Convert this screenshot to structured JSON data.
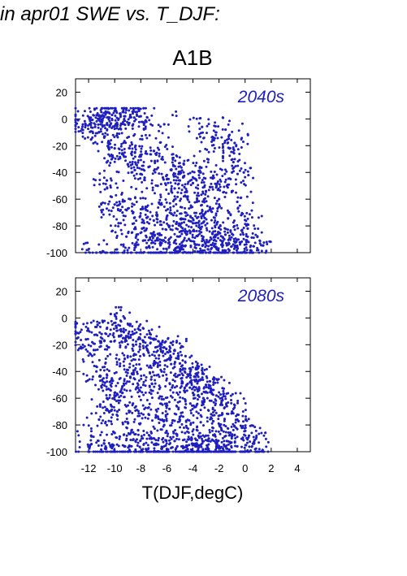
{
  "header": {
    "title": "in apr01 SWE vs. T_DJF:"
  },
  "chart": {
    "scenario": "A1B",
    "xlabel": "T(DJF,degC)"
  },
  "colors": {
    "points": "#1f1fbf",
    "axes": "#000000"
  },
  "chart_data": [
    {
      "type": "scatter",
      "title": "2040s",
      "xlabel": "T(DJF,degC)",
      "ylabel": "",
      "xlim": [
        -13,
        5
      ],
      "ylim": [
        -100,
        30
      ],
      "x_ticks": [
        -12,
        -10,
        -8,
        -6,
        -4,
        -2,
        0,
        2,
        4
      ],
      "y_ticks": [
        20,
        0,
        -20,
        -40,
        -60,
        -80,
        -100
      ],
      "grid": false,
      "series": [
        {
          "points": [
            [
              -12.8,
              -1
            ],
            [
              -11.8,
              -3
            ],
            [
              -11.5,
              -6
            ],
            [
              -11.2,
              -1
            ],
            [
              -11.0,
              2
            ],
            [
              -10.6,
              -4
            ],
            [
              -10.4,
              1
            ],
            [
              -10.2,
              3
            ],
            [
              -10.0,
              6
            ],
            [
              -9.6,
              4
            ],
            [
              -9.2,
              2
            ],
            [
              -8.8,
              3
            ],
            [
              -8.5,
              1
            ],
            [
              -8.0,
              2
            ],
            [
              -11.2,
              -10
            ],
            [
              -10.8,
              -14
            ],
            [
              -10.5,
              -18
            ],
            [
              -10.0,
              -22
            ],
            [
              -9.7,
              -30
            ],
            [
              -9.4,
              -26
            ],
            [
              -9.0,
              -34
            ],
            [
              -8.7,
              -40
            ],
            [
              -8.4,
              -20
            ],
            [
              -8.0,
              -28
            ],
            [
              -7.7,
              -44
            ],
            [
              -7.4,
              -36
            ],
            [
              -7.0,
              -24
            ],
            [
              -6.7,
              -50
            ],
            [
              -6.4,
              -30
            ],
            [
              -6.0,
              -42
            ],
            [
              -5.7,
              -38
            ],
            [
              -5.4,
              -52
            ],
            [
              -5.0,
              -46
            ],
            [
              -4.7,
              -34
            ],
            [
              -4.4,
              -58
            ],
            [
              -4.0,
              -48
            ],
            [
              -3.7,
              -62
            ],
            [
              -3.4,
              -40
            ],
            [
              -3.0,
              -54
            ],
            [
              -2.7,
              -66
            ],
            [
              -2.4,
              -44
            ],
            [
              -2.0,
              -60
            ],
            [
              -1.7,
              -28
            ],
            [
              -1.4,
              -50
            ],
            [
              -1.0,
              -40
            ],
            [
              -0.8,
              -18
            ],
            [
              -0.6,
              -62
            ],
            [
              -0.3,
              -72
            ],
            [
              -0.1,
              -40
            ],
            [
              0.2,
              -82
            ],
            [
              -10.6,
              -46
            ],
            [
              -10.3,
              -58
            ],
            [
              -10.0,
              -64
            ],
            [
              -9.7,
              -78
            ],
            [
              -9.4,
              -70
            ],
            [
              -9.1,
              -88
            ],
            [
              -8.8,
              -60
            ],
            [
              -8.5,
              -74
            ],
            [
              -8.2,
              -94
            ],
            [
              -7.9,
              -82
            ],
            [
              -7.6,
              -68
            ],
            [
              -7.3,
              -90
            ],
            [
              -7.0,
              -76
            ],
            [
              -6.7,
              -86
            ],
            [
              -6.4,
              -64
            ],
            [
              -6.1,
              -92
            ],
            [
              -5.8,
              -80
            ],
            [
              -5.5,
              -72
            ],
            [
              -5.2,
              -96
            ],
            [
              -4.9,
              -84
            ],
            [
              -4.6,
              -70
            ],
            [
              -4.3,
              -90
            ],
            [
              -4.0,
              -78
            ],
            [
              -3.7,
              -94
            ],
            [
              -3.4,
              -82
            ],
            [
              -3.1,
              -74
            ],
            [
              -2.8,
              -92
            ],
            [
              -2.5,
              -86
            ],
            [
              -2.2,
              -96
            ],
            [
              -1.9,
              -80
            ],
            [
              -1.6,
              -90
            ],
            [
              -1.3,
              -94
            ],
            [
              -1.0,
              -86
            ],
            [
              -0.6,
              -96
            ],
            [
              0.1,
              -92
            ],
            [
              -1.2,
              -12
            ],
            [
              -1.5,
              -8
            ],
            [
              -2.4,
              -16
            ],
            [
              -3.3,
              -6
            ],
            [
              -6.2,
              -4
            ],
            [
              -11.4,
              -100
            ],
            [
              -10.2,
              -100
            ],
            [
              -9.0,
              -100
            ],
            [
              -7.8,
              -100
            ],
            [
              -6.6,
              -100
            ],
            [
              -5.4,
              -100
            ],
            [
              -4.2,
              -100
            ],
            [
              -3.0,
              -100
            ],
            [
              -1.8,
              -100
            ],
            [
              -0.6,
              -100
            ],
            [
              0.6,
              -100
            ],
            [
              1.0,
              -98
            ]
          ]
        }
      ]
    },
    {
      "type": "scatter",
      "title": "2080s",
      "xlabel": "T(DJF,degC)",
      "ylabel": "",
      "xlim": [
        -13,
        5
      ],
      "ylim": [
        -100,
        30
      ],
      "x_ticks": [
        -12,
        -10,
        -8,
        -6,
        -4,
        -2,
        0,
        2,
        4
      ],
      "y_ticks": [
        20,
        0,
        -20,
        -40,
        -60,
        -80,
        -100
      ],
      "grid": false,
      "series": [
        {
          "points": [
            [
              -12.9,
              -4
            ],
            [
              -12.2,
              -16
            ],
            [
              -11.6,
              -24
            ],
            [
              -11.0,
              -12
            ],
            [
              -10.6,
              -8
            ],
            [
              -10.3,
              3
            ],
            [
              -9.9,
              -6
            ],
            [
              -9.5,
              -10
            ],
            [
              -9.0,
              -14
            ],
            [
              -8.6,
              -20
            ],
            [
              -8.2,
              -8
            ],
            [
              -7.8,
              -18
            ],
            [
              -7.4,
              -26
            ],
            [
              -7.0,
              -16
            ],
            [
              -6.6,
              -28
            ],
            [
              -6.2,
              -22
            ],
            [
              -5.8,
              -30
            ],
            [
              -5.4,
              -24
            ],
            [
              -5.0,
              -34
            ],
            [
              -4.6,
              -38
            ],
            [
              -4.2,
              -40
            ],
            [
              -3.8,
              -44
            ],
            [
              -3.4,
              -46
            ],
            [
              -3.0,
              -50
            ],
            [
              -2.6,
              -54
            ],
            [
              -2.2,
              -58
            ],
            [
              -1.8,
              -62
            ],
            [
              -1.4,
              -66
            ],
            [
              -1.0,
              -70
            ],
            [
              -0.6,
              -76
            ],
            [
              -0.2,
              -82
            ],
            [
              0.3,
              -88
            ],
            [
              0.6,
              -94
            ],
            [
              -11.4,
              -40
            ],
            [
              -11.0,
              -52
            ],
            [
              -10.6,
              -60
            ],
            [
              -10.2,
              -46
            ],
            [
              -9.8,
              -70
            ],
            [
              -9.4,
              -56
            ],
            [
              -9.0,
              -78
            ],
            [
              -8.6,
              -64
            ],
            [
              -8.2,
              -84
            ],
            [
              -7.8,
              -50
            ],
            [
              -7.4,
              -72
            ],
            [
              -7.0,
              -90
            ],
            [
              -6.6,
              -60
            ],
            [
              -6.2,
              -80
            ],
            [
              -5.8,
              -68
            ],
            [
              -5.4,
              -92
            ],
            [
              -5.0,
              -74
            ],
            [
              -4.6,
              -86
            ],
            [
              -4.2,
              -64
            ],
            [
              -3.8,
              -94
            ],
            [
              -3.4,
              -78
            ],
            [
              -3.0,
              -88
            ],
            [
              -2.6,
              -72
            ],
            [
              -2.2,
              -96
            ],
            [
              -1.8,
              -84
            ],
            [
              -1.4,
              -92
            ],
            [
              -1.0,
              -88
            ],
            [
              -0.6,
              -96
            ],
            [
              -11.8,
              -88
            ],
            [
              -11.2,
              -76
            ],
            [
              -10.8,
              -94
            ],
            [
              -10.0,
              -86
            ],
            [
              -9.2,
              -96
            ],
            [
              -8.4,
              -92
            ],
            [
              -7.6,
              -98
            ],
            [
              -6.8,
              -94
            ],
            [
              -6.0,
              -98
            ],
            [
              -5.2,
              -96
            ],
            [
              -4.4,
              -98
            ],
            [
              -3.6,
              -98
            ],
            [
              -2.8,
              -98
            ],
            [
              -12.0,
              -100
            ],
            [
              -11.0,
              -100
            ],
            [
              -10.0,
              -100
            ],
            [
              -9.0,
              -100
            ],
            [
              -8.0,
              -100
            ],
            [
              -7.0,
              -100
            ],
            [
              -6.0,
              -100
            ],
            [
              -5.0,
              -100
            ],
            [
              -4.0,
              -100
            ],
            [
              -3.0,
              -100
            ],
            [
              -2.0,
              -100
            ],
            [
              -1.0,
              -100
            ],
            [
              0.0,
              -100
            ],
            [
              0.8,
              -100
            ],
            [
              -9.6,
              -36
            ],
            [
              -8.8,
              -44
            ],
            [
              -8.0,
              -38
            ],
            [
              -7.2,
              -46
            ],
            [
              -6.4,
              -40
            ],
            [
              -5.6,
              -52
            ],
            [
              -4.8,
              -48
            ],
            [
              -4.0,
              -56
            ],
            [
              -3.2,
              -60
            ]
          ]
        }
      ]
    }
  ]
}
